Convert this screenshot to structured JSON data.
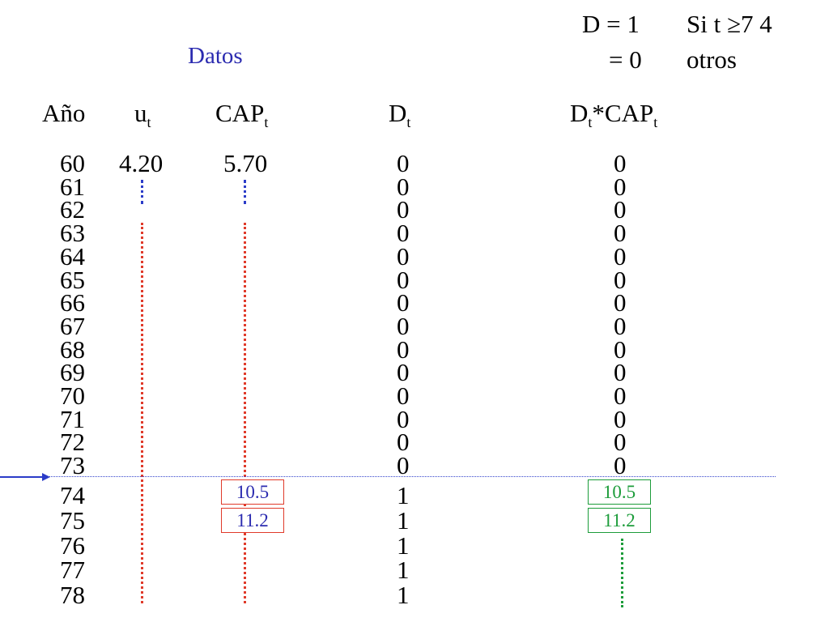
{
  "formula": {
    "d_eq_1": "D = 1",
    "cond_1": "Si t ≥7 4",
    "d_eq_0": "= 0",
    "cond_0": "otros"
  },
  "title": "Datos",
  "headers": {
    "year": "Año",
    "u_main": "u",
    "u_sub": "t",
    "cap_main": "CAP",
    "cap_sub": "t",
    "d_main": "D",
    "d_sub": "t",
    "dcap_main": "D",
    "dcap_sub1": "t",
    "dcap_mid": "*CAP",
    "dcap_sub2": "t"
  },
  "years": [
    "60",
    "61",
    "62",
    "63",
    "64",
    "65",
    "66",
    "67",
    "68",
    "69",
    "70",
    "71",
    "72",
    "73",
    "74",
    "75",
    "76",
    "77",
    "78"
  ],
  "u_first": "4.20",
  "cap_first": "5.70",
  "d_values": [
    "0",
    "0",
    "0",
    "0",
    "0",
    "0",
    "0",
    "0",
    "0",
    "0",
    "0",
    "0",
    "0",
    "0",
    "1",
    "1",
    "1",
    "1",
    "1"
  ],
  "dcap_values": [
    "0",
    "0",
    "0",
    "0",
    "0",
    "0",
    "0",
    "0",
    "0",
    "0",
    "0",
    "0",
    "0",
    "0"
  ],
  "cap_boxes": [
    "10.5",
    "11.2"
  ],
  "dcap_boxes": [
    "10.5",
    "11.2"
  ],
  "colors": {
    "title": "#2b2bb0",
    "dots_red": "#e03a2a",
    "dots_green": "#1c9c3a",
    "dots_blue": "#2b3cc8",
    "arrow": "#2b3cc8"
  }
}
